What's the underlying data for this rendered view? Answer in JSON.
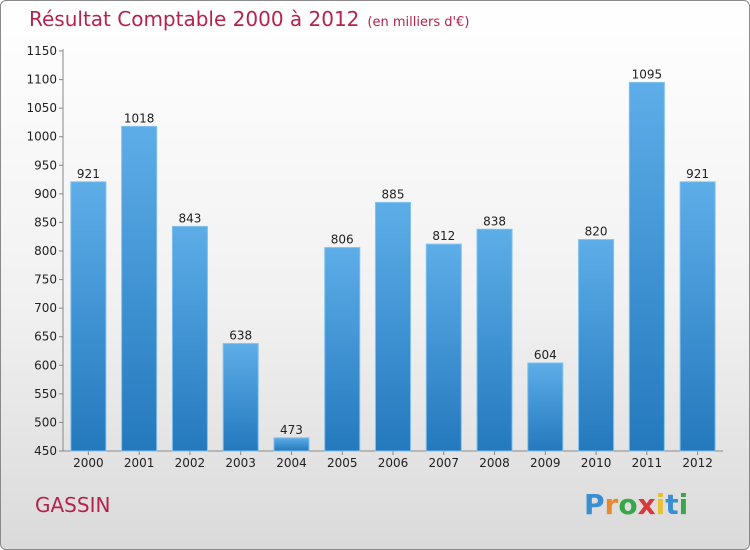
{
  "header": {
    "title": "Résultat Comptable 2000 à 2012",
    "subtitle": "(en milliers d'€)"
  },
  "footer": {
    "city": "GASSIN",
    "brand": "Proxiti"
  },
  "colors": {
    "title": "#b5234c",
    "bar_light": "#5dade8",
    "bar_dark": "#2479bd",
    "axis": "#888888"
  },
  "chart_data": {
    "type": "bar",
    "title": "Résultat Comptable 2000 à 2012",
    "subtitle": "(en milliers d'€)",
    "categories": [
      "2000",
      "2001",
      "2002",
      "2003",
      "2004",
      "2005",
      "2006",
      "2007",
      "2008",
      "2009",
      "2010",
      "2011",
      "2012"
    ],
    "values": [
      921,
      1018,
      843,
      638,
      473,
      806,
      885,
      812,
      838,
      604,
      820,
      1095,
      921
    ],
    "ylim": [
      450,
      1150
    ],
    "yticks": [
      450,
      500,
      550,
      600,
      650,
      700,
      750,
      800,
      850,
      900,
      950,
      1000,
      1050,
      1100,
      1150
    ],
    "grid": false,
    "legend": "none"
  }
}
